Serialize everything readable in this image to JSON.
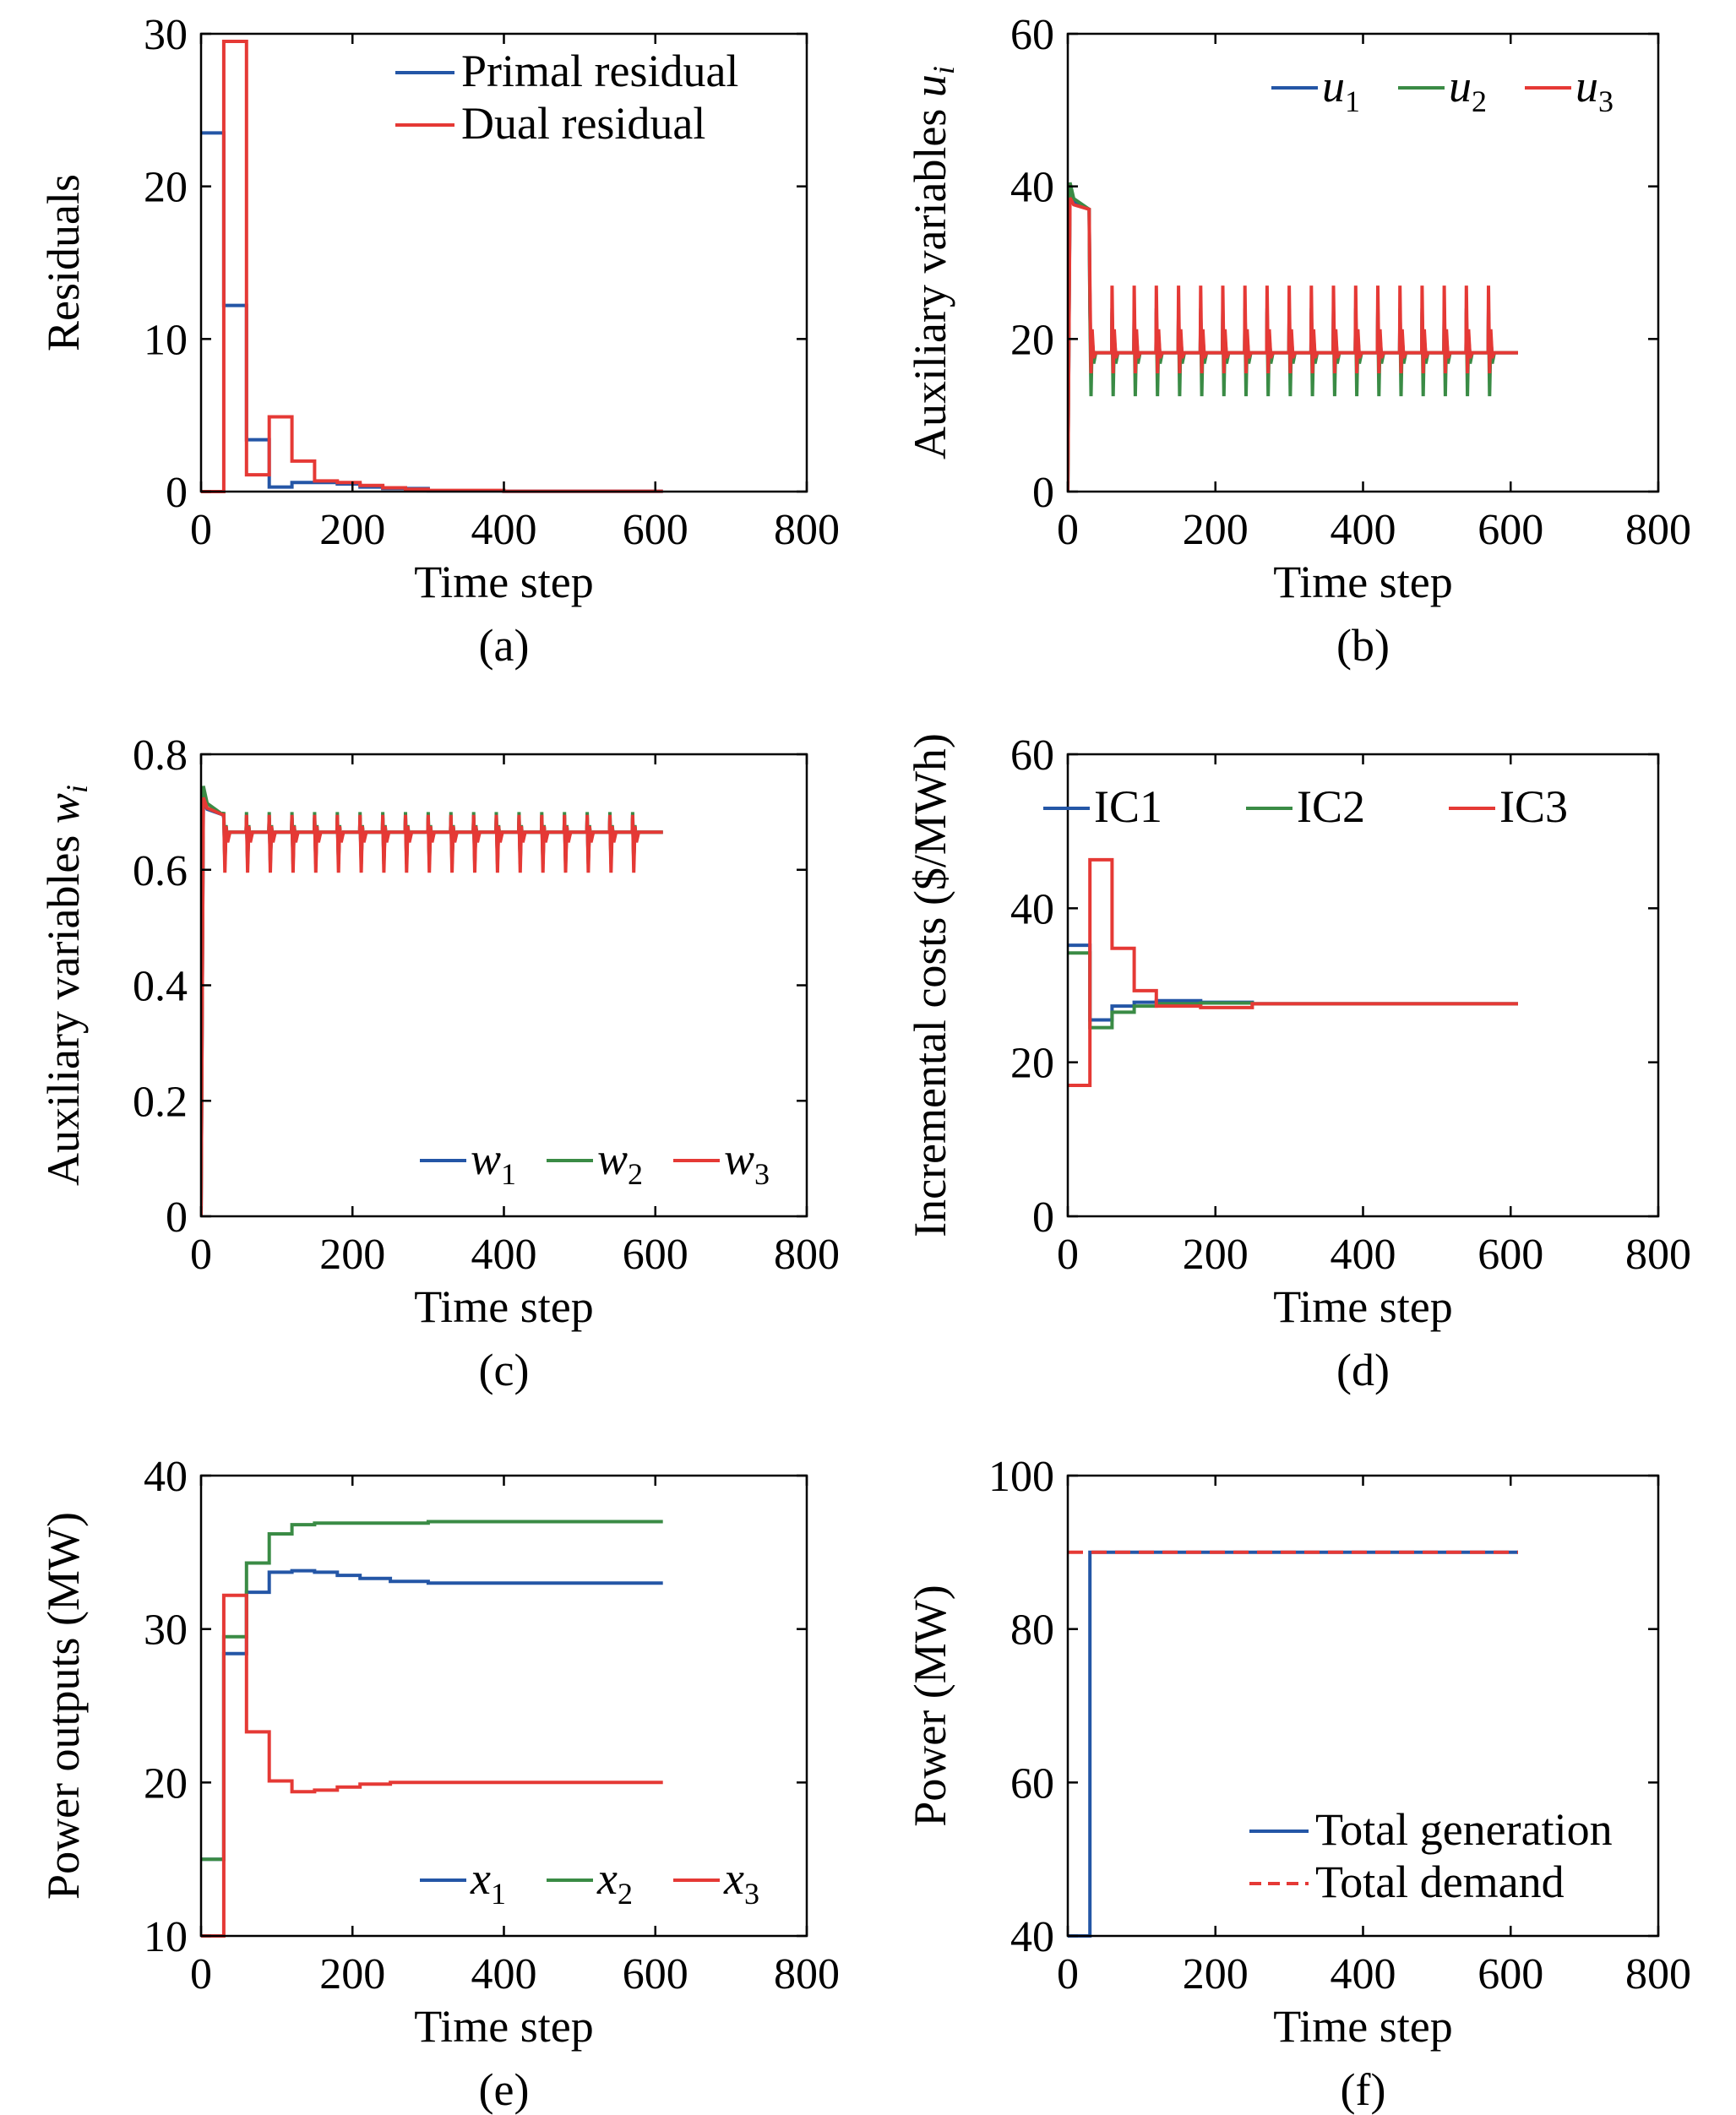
{
  "chart_data": [
    {
      "panel": "a",
      "type": "line",
      "step": true,
      "caption": "(a)",
      "xlabel": "Time step",
      "ylabel": "Residuals",
      "xlim": [
        0,
        800
      ],
      "ylim": [
        0,
        30
      ],
      "xticks": [
        "0",
        "200",
        "400",
        "600",
        "800"
      ],
      "yticks": [
        "0",
        "10",
        "20",
        "30"
      ],
      "legend_position": "top-right",
      "series": [
        {
          "name": "Primal residual",
          "color": "#2456a6",
          "x": [
            0,
            30,
            30,
            60,
            60,
            90,
            90,
            120,
            120,
            150,
            150,
            180,
            180,
            210,
            210,
            240,
            240,
            300,
            300,
            400,
            400,
            610
          ],
          "y": [
            23.5,
            23.5,
            12.2,
            12.2,
            3.4,
            3.4,
            0.3,
            0.3,
            0.6,
            0.6,
            0.6,
            0.6,
            0.5,
            0.5,
            0.3,
            0.3,
            0.2,
            0.2,
            0.05,
            0.05,
            0.02,
            0.02
          ]
        },
        {
          "name": "Dual residual",
          "color": "#e53935",
          "x": [
            0,
            30,
            30,
            60,
            60,
            90,
            90,
            120,
            120,
            150,
            150,
            180,
            180,
            210,
            210,
            240,
            240,
            270,
            270,
            300,
            300,
            400,
            400,
            610
          ],
          "y": [
            0,
            0,
            29.5,
            29.5,
            1.1,
            1.1,
            4.9,
            4.9,
            2.0,
            2.0,
            0.7,
            0.7,
            0.6,
            0.6,
            0.4,
            0.4,
            0.25,
            0.25,
            0.15,
            0.15,
            0.08,
            0.08,
            0.02,
            0.02
          ]
        }
      ]
    },
    {
      "panel": "b",
      "type": "line",
      "caption": "(b)",
      "xlabel": "Time step",
      "ylabel": "Auxiliary variables ",
      "ylabel_var": "u",
      "ylabel_sub": "i",
      "xlim": [
        0,
        800
      ],
      "ylim": [
        0,
        60
      ],
      "xticks": [
        "0",
        "200",
        "400",
        "600",
        "800"
      ],
      "yticks": [
        "0",
        "20",
        "40",
        "60"
      ],
      "legend_position": "top-right",
      "pattern": {
        "init_end": 30,
        "init_value": 37,
        "spike_start": 30,
        "spike_period": 30,
        "spike_end": 590,
        "steady_value": 18.2,
        "x_end": 610
      },
      "series": [
        {
          "name": "u",
          "sub": "1",
          "color": "#2456a6",
          "peak": 39.5,
          "spike_high": 24.0,
          "spike_low": 16.5
        },
        {
          "name": "u",
          "sub": "2",
          "color": "#3a8b45",
          "peak": 40.5,
          "spike_high": 23.5,
          "spike_low": 12.5
        },
        {
          "name": "u",
          "sub": "3",
          "color": "#e53935",
          "peak": 38.5,
          "spike_high": 27.0,
          "spike_low": 15.5
        }
      ]
    },
    {
      "panel": "c",
      "type": "line",
      "caption": "(c)",
      "xlabel": "Time step",
      "ylabel": "Auxiliary variables ",
      "ylabel_var": "w",
      "ylabel_sub": "i",
      "xlim": [
        0,
        800
      ],
      "ylim": [
        0,
        0.8
      ],
      "xticks": [
        "0",
        "200",
        "400",
        "600",
        "800"
      ],
      "yticks": [
        "0",
        "0.2",
        "0.4",
        "0.6",
        "0.8"
      ],
      "legend_position": "bottom-right",
      "pattern": {
        "init_end": 30,
        "init_value": 0.695,
        "spike_start": 30,
        "spike_period": 30,
        "spike_end": 590,
        "steady_value": 0.665,
        "x_end": 610
      },
      "series": [
        {
          "name": "w",
          "sub": "1",
          "color": "#2456a6",
          "peak": 0.72,
          "spike_high": 0.69,
          "spike_low": 0.615
        },
        {
          "name": "w",
          "sub": "2",
          "color": "#3a8b45",
          "peak": 0.745,
          "spike_high": 0.7,
          "spike_low": 0.61
        },
        {
          "name": "w",
          "sub": "3",
          "color": "#e53935",
          "peak": 0.725,
          "spike_high": 0.695,
          "spike_low": 0.595
        }
      ]
    },
    {
      "panel": "d",
      "type": "line",
      "step": true,
      "caption": "(d)",
      "xlabel": "Time step",
      "ylabel": "Incremental costs ($/MWh)",
      "xlim": [
        0,
        800
      ],
      "ylim": [
        0,
        60
      ],
      "xticks": [
        "0",
        "200",
        "400",
        "600",
        "800"
      ],
      "yticks": [
        "0",
        "20",
        "40",
        "60"
      ],
      "legend_position": "top-right",
      "series": [
        {
          "name": "IC1",
          "color": "#2456a6",
          "x": [
            0,
            30,
            30,
            60,
            60,
            90,
            90,
            120,
            120,
            180,
            180,
            250,
            250,
            610
          ],
          "y": [
            35.2,
            35.2,
            25.5,
            25.5,
            27.3,
            27.3,
            27.8,
            27.8,
            28.0,
            28.0,
            27.8,
            27.8,
            27.6,
            27.6
          ]
        },
        {
          "name": "IC2",
          "color": "#3a8b45",
          "x": [
            0,
            30,
            30,
            60,
            60,
            90,
            90,
            120,
            120,
            180,
            180,
            250,
            250,
            610
          ],
          "y": [
            34.2,
            34.2,
            24.5,
            24.5,
            26.5,
            26.5,
            27.3,
            27.3,
            27.6,
            27.6,
            27.7,
            27.7,
            27.6,
            27.6
          ]
        },
        {
          "name": "IC3",
          "color": "#e53935",
          "x": [
            0,
            30,
            30,
            60,
            60,
            90,
            90,
            120,
            120,
            180,
            180,
            250,
            250,
            610
          ],
          "y": [
            17,
            17,
            46.3,
            46.3,
            34.8,
            34.8,
            29.3,
            29.3,
            27.3,
            27.3,
            27.1,
            27.1,
            27.6,
            27.6
          ]
        }
      ]
    },
    {
      "panel": "e",
      "type": "line",
      "step": true,
      "caption": "(e)",
      "xlabel": "Time step",
      "ylabel": "Power outputs (MW)",
      "xlim": [
        0,
        800
      ],
      "ylim": [
        10,
        40
      ],
      "xticks": [
        "0",
        "200",
        "400",
        "600",
        "800"
      ],
      "yticks": [
        "10",
        "20",
        "30",
        "40"
      ],
      "legend_position": "bottom-right",
      "series": [
        {
          "name": "x",
          "sub": "1",
          "color": "#2456a6",
          "x": [
            0,
            30,
            30,
            60,
            60,
            90,
            90,
            120,
            120,
            150,
            150,
            180,
            180,
            210,
            210,
            250,
            250,
            300,
            300,
            400,
            400,
            610
          ],
          "y": [
            15,
            15,
            28.4,
            28.4,
            32.4,
            32.4,
            33.7,
            33.7,
            33.8,
            33.8,
            33.7,
            33.7,
            33.5,
            33.5,
            33.3,
            33.3,
            33.1,
            33.1,
            33.0,
            33.0,
            33.0,
            33.0
          ]
        },
        {
          "name": "x",
          "sub": "2",
          "color": "#3a8b45",
          "x": [
            0,
            30,
            30,
            60,
            60,
            90,
            90,
            120,
            120,
            150,
            150,
            200,
            200,
            300,
            300,
            400,
            400,
            610
          ],
          "y": [
            15,
            15,
            29.5,
            29.5,
            34.3,
            34.3,
            36.2,
            36.2,
            36.8,
            36.8,
            36.9,
            36.9,
            36.9,
            36.9,
            37.0,
            37.0,
            37.0,
            37.0
          ]
        },
        {
          "name": "x",
          "sub": "3",
          "color": "#e53935",
          "x": [
            0,
            30,
            30,
            60,
            60,
            90,
            90,
            120,
            120,
            150,
            150,
            180,
            180,
            210,
            210,
            250,
            250,
            300,
            300,
            610
          ],
          "y": [
            10,
            10,
            32.2,
            32.2,
            23.3,
            23.3,
            20.1,
            20.1,
            19.4,
            19.4,
            19.5,
            19.5,
            19.7,
            19.7,
            19.9,
            19.9,
            20.0,
            20.0,
            20.0,
            20.0
          ]
        }
      ]
    },
    {
      "panel": "f",
      "type": "line",
      "step": true,
      "caption": "(f)",
      "xlabel": "Time step",
      "ylabel": "Power (MW)",
      "xlim": [
        0,
        800
      ],
      "ylim": [
        40,
        100
      ],
      "xticks": [
        "0",
        "200",
        "400",
        "600",
        "800"
      ],
      "yticks": [
        "40",
        "60",
        "80",
        "100"
      ],
      "legend_position": "bottom-right",
      "series": [
        {
          "name": "Total generation",
          "color": "#2456a6",
          "dash": false,
          "x": [
            0,
            30,
            30,
            610
          ],
          "y": [
            40,
            40,
            90,
            90
          ]
        },
        {
          "name": "Total demand",
          "color": "#e53935",
          "dash": true,
          "x": [
            0,
            610
          ],
          "y": [
            90,
            90
          ]
        }
      ]
    }
  ]
}
